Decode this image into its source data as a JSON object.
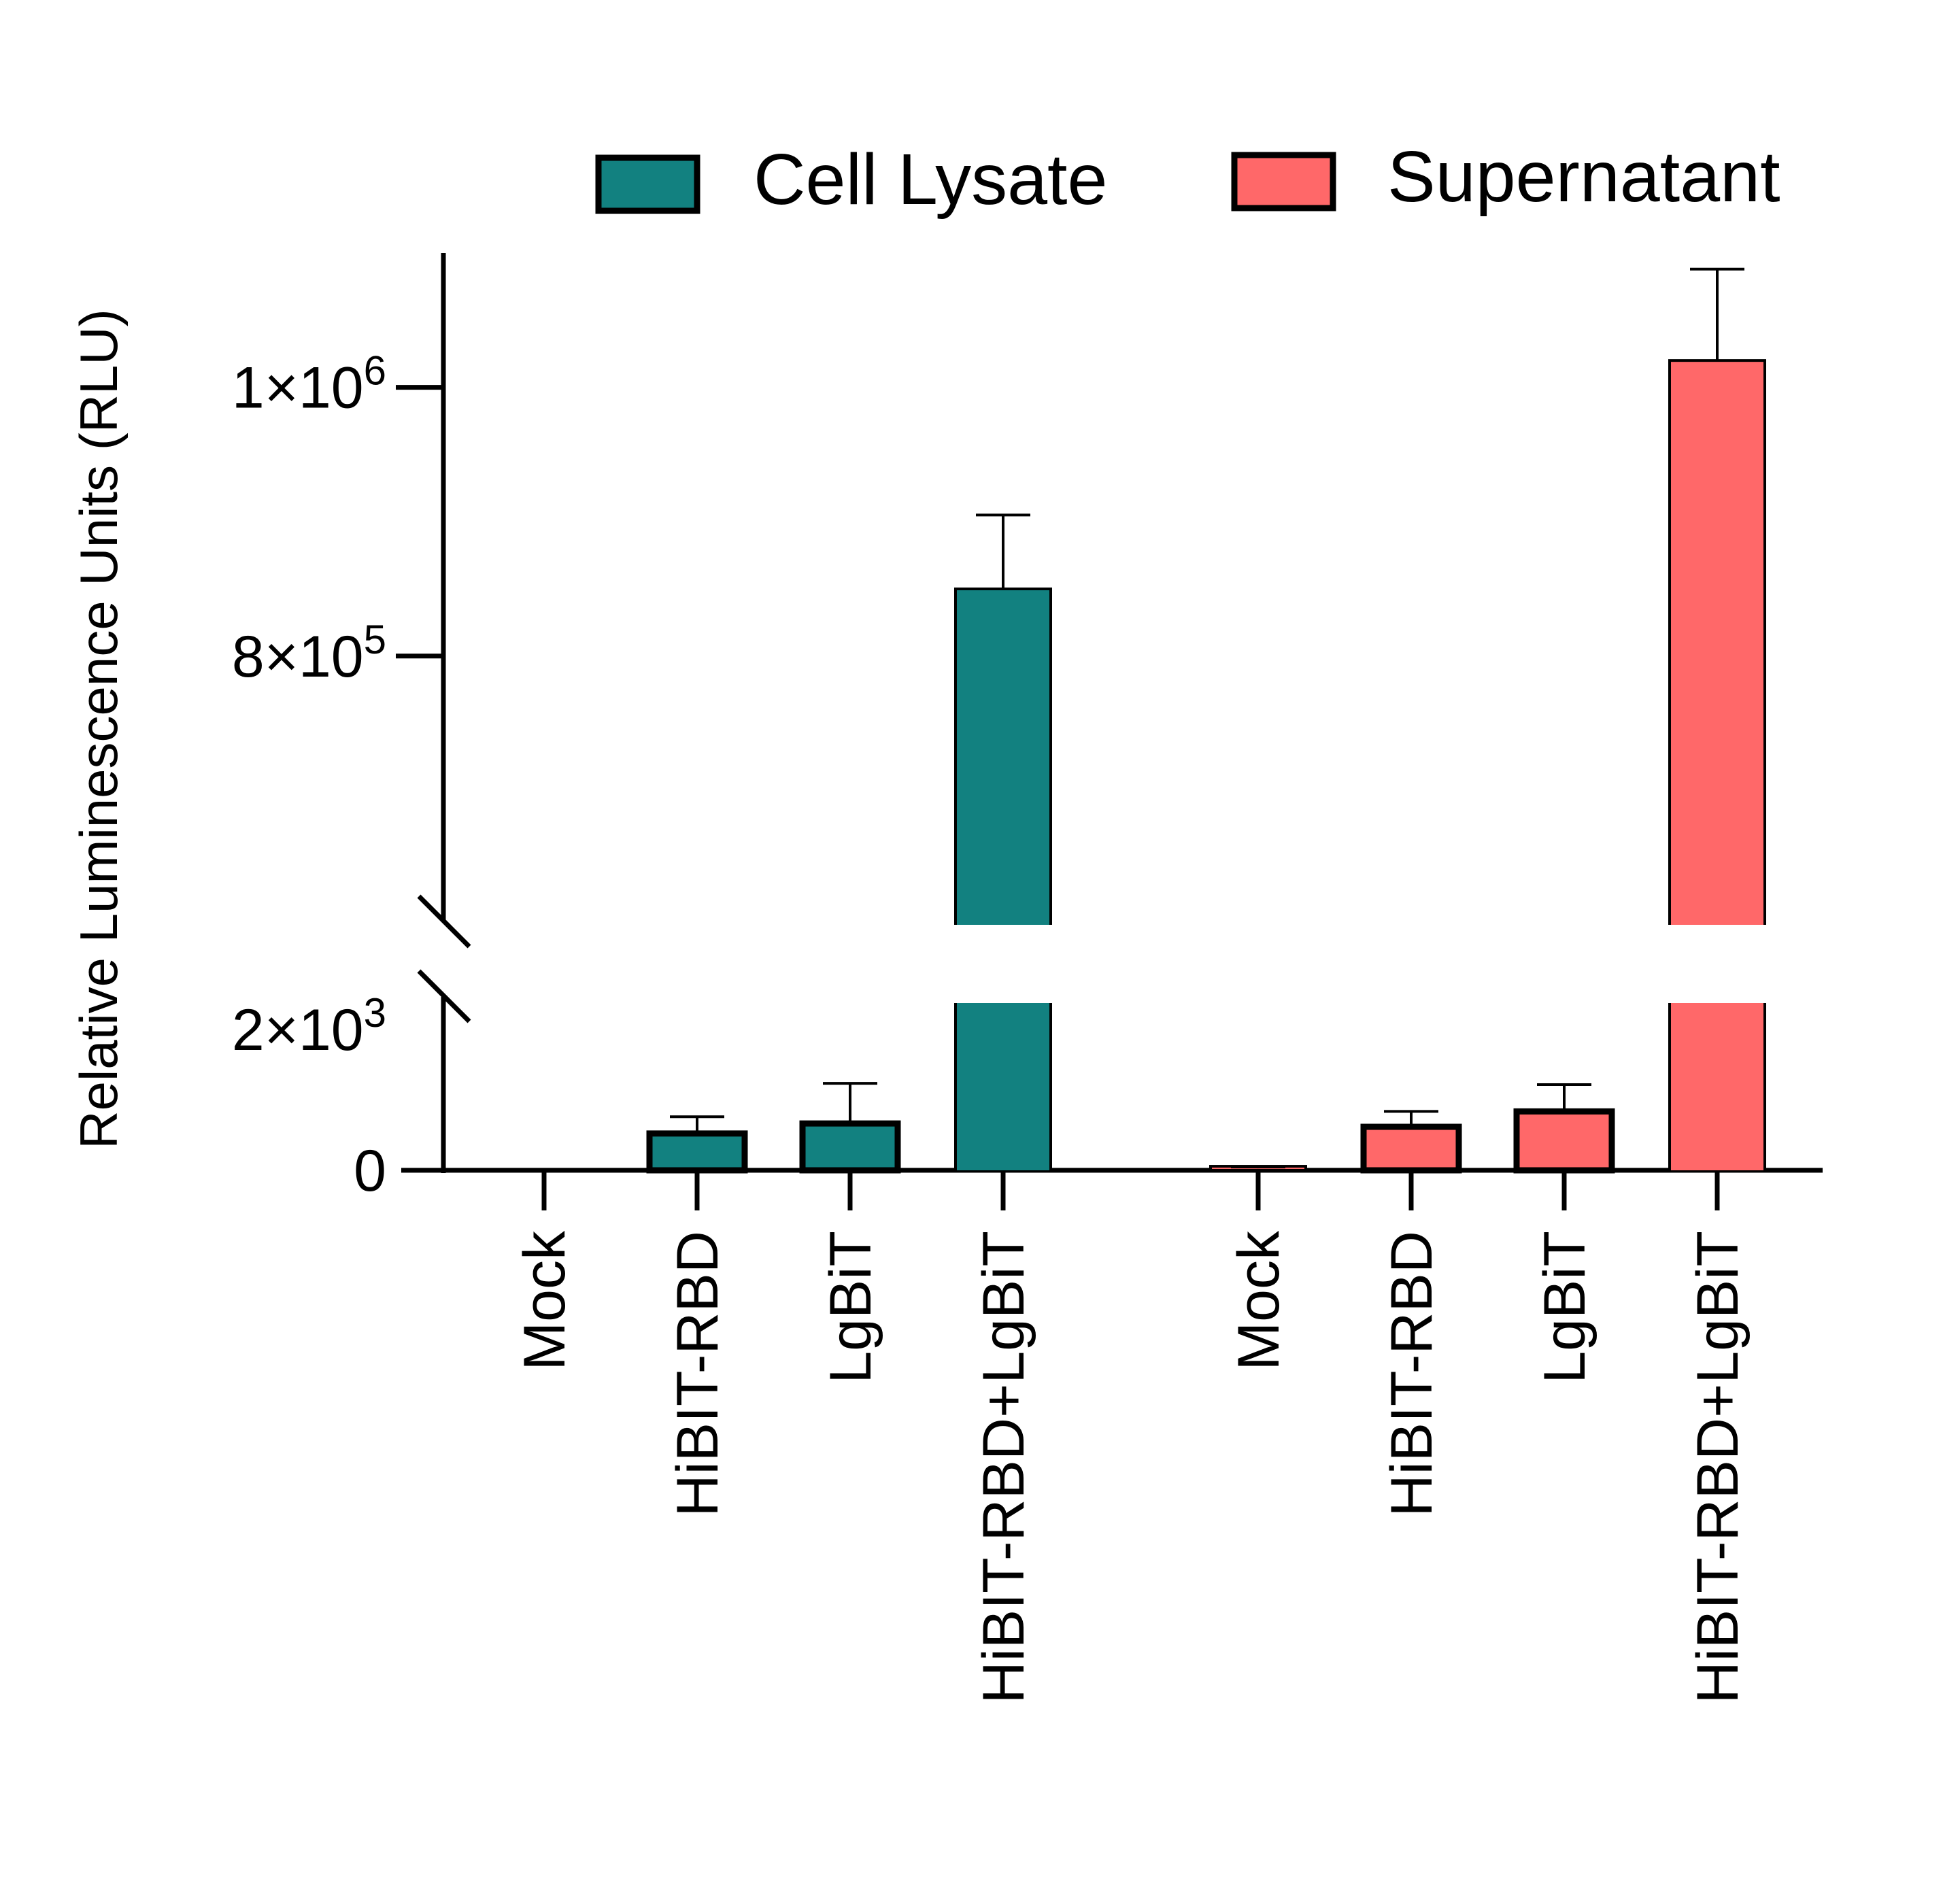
{
  "chart_data": {
    "type": "bar",
    "ylabel": "Relative Luminescence Units (RLU)",
    "legend_position": "top-right",
    "grid": false,
    "y_axis_break": {
      "lower_range": [
        0,
        2500
      ],
      "upper_range": [
        600000,
        1100000
      ]
    },
    "y_tick_labels": [
      {
        "value": 0,
        "label": "0"
      },
      {
        "value": 2000,
        "base": "2×10",
        "exp": "3"
      },
      {
        "value": 800000,
        "base": "8×10",
        "exp": "5"
      },
      {
        "value": 1000000,
        "base": "1×10",
        "exp": "6"
      }
    ],
    "series": [
      {
        "name": "Cell Lysate",
        "color": "#128180",
        "categories": [
          "Mock",
          "HiBIT-RBD",
          "LgBiT",
          "HiBIT-RBD+LgBiT"
        ],
        "values": [
          0,
          550,
          700,
          850000
        ],
        "errors": [
          0,
          250,
          600,
          55000
        ]
      },
      {
        "name": "Supernatant",
        "color": "#ff6869",
        "categories": [
          "Mock",
          "HiBIT-RBD",
          "LgBiT",
          "HiBIT-RBD+LgBiT"
        ],
        "values": [
          30,
          650,
          880,
          1020000
        ],
        "errors": [
          20,
          230,
          400,
          68000
        ]
      }
    ]
  }
}
